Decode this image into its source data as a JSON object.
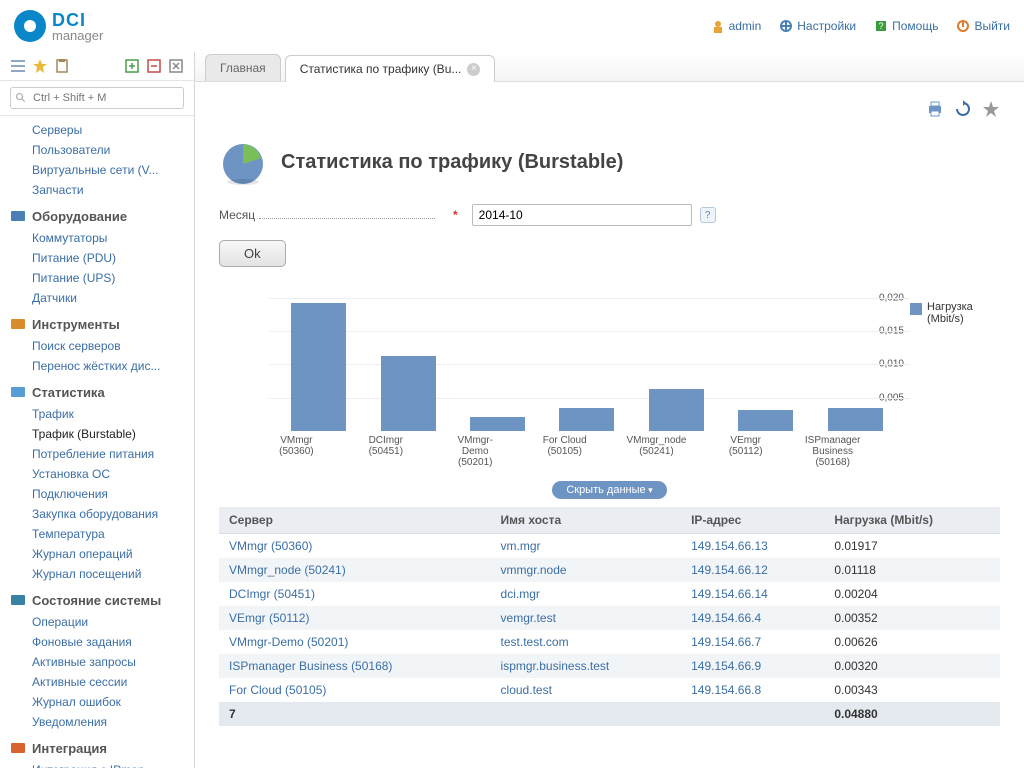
{
  "logo": {
    "t1": "DCI",
    "t2": "manager"
  },
  "header_links": [
    {
      "label": "admin",
      "icon_color": "#e8a23a"
    },
    {
      "label": "Настройки",
      "icon_color": "#4a7fb5"
    },
    {
      "label": "Помощь",
      "icon_color": "#3a9c3a"
    },
    {
      "label": "Выйти",
      "icon_color": "#e07b2e"
    }
  ],
  "search_placeholder": "Ctrl + Shift + M",
  "sidebar": {
    "top_items": [
      "Серверы",
      "Пользователи",
      "Виртуальные сети (V...",
      "Запчасти"
    ],
    "sections": [
      {
        "title": "Оборудование",
        "icon_color": "#4a7fb5",
        "items": [
          "Коммутаторы",
          "Питание (PDU)",
          "Питание (UPS)",
          "Датчики"
        ]
      },
      {
        "title": "Инструменты",
        "icon_color": "#d98c2e",
        "items": [
          "Поиск серверов",
          "Перенос жёстких дис..."
        ]
      },
      {
        "title": "Статистика",
        "icon_color": "#5a9dd6",
        "items": [
          "Трафик",
          "Трафик (Burstable)",
          "Потребление питания",
          "Установка ОС",
          "Подключения",
          "Закупка оборудования",
          "Температура",
          "Журнал операций",
          "Журнал посещений"
        ],
        "active_index": 1
      },
      {
        "title": "Состояние системы",
        "icon_color": "#3a7fa5",
        "items": [
          "Операции",
          "Фоновые задания",
          "Активные запросы",
          "Активные сессии",
          "Журнал ошибок",
          "Уведомления"
        ]
      },
      {
        "title": "Интеграция",
        "icon_color": "#d9632e",
        "items": [
          "Интеграция с IPman..."
        ]
      }
    ]
  },
  "tabs": [
    {
      "label": "Главная",
      "active": false
    },
    {
      "label": "Статистика по трафику (Bu...",
      "active": true,
      "closable": true
    }
  ],
  "page": {
    "title": "Статистика по трафику (Burstable)",
    "month_label": "Месяц",
    "month_value": "2014-10",
    "ok_label": "Ok",
    "hide_data_label": "Скрыть данные"
  },
  "chart": {
    "type": "bar",
    "y_ticks": [
      "0,020",
      "0,015",
      "0,010",
      "0,005"
    ],
    "y_tick_values": [
      0.02,
      0.015,
      0.01,
      0.005
    ],
    "y_max": 0.021,
    "bar_color": "#6d94c3",
    "grid_color": "#eeeeee",
    "label_fontsize": 10,
    "legend_label": "Нагрузка (Mbit/s)",
    "categories_row1": [
      "VMmgr (50360)",
      "",
      "DCImgr (50451)",
      "",
      "VMmgr-Demo (50201)",
      "",
      "For Cloud (50105)"
    ],
    "categories_row2": [
      "",
      "VMmgr_node (50241)",
      "",
      "VEmgr (50112)",
      "",
      "ISPmanager Business (50168)",
      ""
    ],
    "values": [
      0.01917,
      0.01118,
      0.00204,
      0.00352,
      0.00626,
      0.0032,
      0.00343
    ]
  },
  "table": {
    "columns": [
      "Сервер",
      "Имя хоста",
      "IP-адрес",
      "Нагрузка (Mbit/s)"
    ],
    "rows": [
      [
        "VMmgr (50360)",
        "vm.mgr",
        "149.154.66.13",
        "0.01917"
      ],
      [
        "VMmgr_node (50241)",
        "vmmgr.node",
        "149.154.66.12",
        "0.01118"
      ],
      [
        "DCImgr (50451)",
        "dci.mgr",
        "149.154.66.14",
        "0.00204"
      ],
      [
        "VEmgr (50112)",
        "vemgr.test",
        "149.154.66.4",
        "0.00352"
      ],
      [
        "VMmgr-Demo (50201)",
        "test.test.com",
        "149.154.66.7",
        "0.00626"
      ],
      [
        "ISPmanager Business (50168)",
        "ispmgr.business.test",
        "149.154.66.9",
        "0.00320"
      ],
      [
        "For Cloud (50105)",
        "cloud.test",
        "149.154.66.8",
        "0.00343"
      ]
    ],
    "total_row": [
      "7",
      "",
      "",
      "0.04880"
    ]
  }
}
